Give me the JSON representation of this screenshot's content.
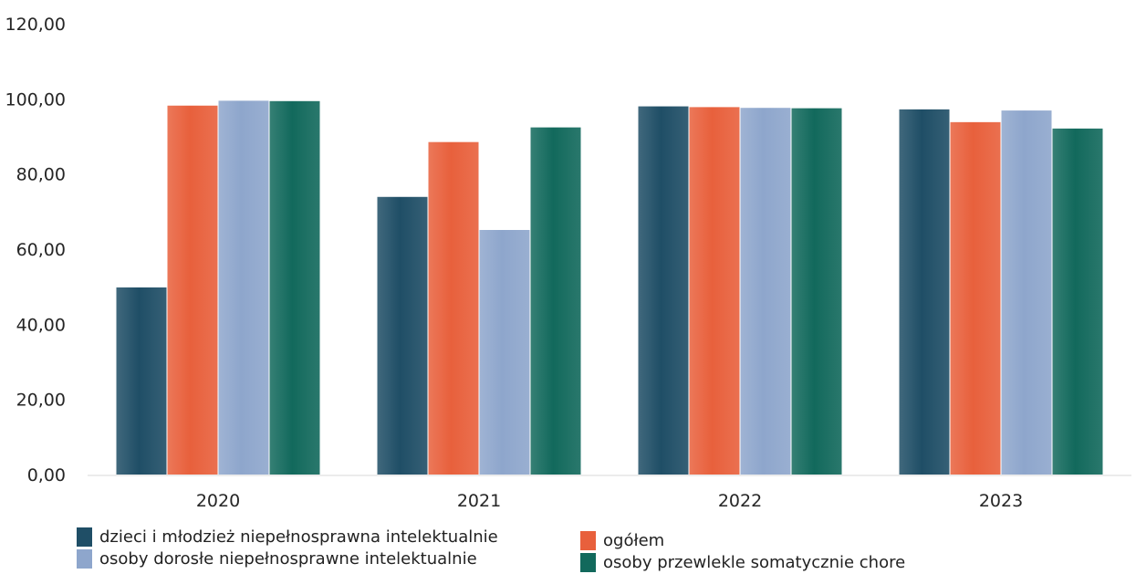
{
  "chart_data": {
    "type": "bar",
    "categories": [
      "2020",
      "2021",
      "2022",
      "2023"
    ],
    "series": [
      {
        "name": "dzieci i młodzież niepełnosprawna intelektualnie",
        "color": "#1f4e66",
        "values": [
          49.8,
          73.9,
          98.0,
          97.2
        ]
      },
      {
        "name": "ogółem",
        "color": "#e8603c",
        "values": [
          98.2,
          88.5,
          97.8,
          93.8
        ]
      },
      {
        "name": "osoby dorosłe niepełnosprawne intelektualnie",
        "color": "#8ea6cc",
        "values": [
          99.5,
          65.1,
          97.6,
          96.9
        ]
      },
      {
        "name": "osoby przewlekle somatycznie chore",
        "color": "#12695c",
        "values": [
          99.4,
          92.4,
          97.5,
          92.1
        ]
      }
    ],
    "y_ticks": [
      "0,00",
      "20,00",
      "40,00",
      "60,00",
      "80,00",
      "100,00",
      "120,00"
    ],
    "ylim": [
      0,
      120
    ],
    "title": "",
    "xlabel": "",
    "ylabel": "",
    "grid": false,
    "legend_position": "bottom"
  }
}
